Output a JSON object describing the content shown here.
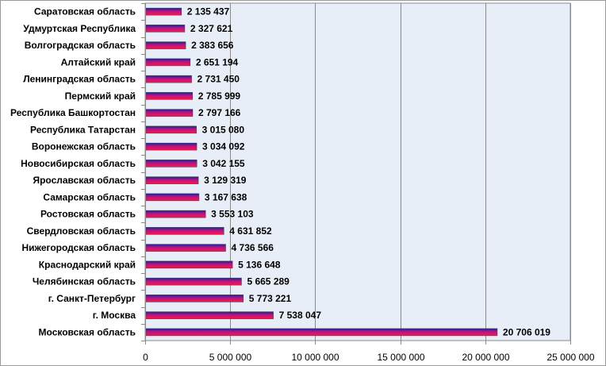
{
  "chart_data": {
    "type": "bar",
    "orientation": "horizontal",
    "categories": [
      "Саратовская область",
      "Удмуртская Республика",
      "Волгоградская область",
      "Алтайский край",
      "Ленинградская область",
      "Пермский край",
      "Республика Башкортостан",
      "Республика Татарстан",
      "Воронежская область",
      "Новосибирская область",
      "Ярославская область",
      "Самарская область",
      "Ростовская область",
      "Свердловская область",
      "Нижегородская область",
      "Краснодарский край",
      "Челябинская область",
      "г. Санкт-Петербург",
      "г. Москва",
      "Московская область"
    ],
    "values": [
      2135437,
      2327621,
      2383656,
      2651194,
      2731450,
      2785999,
      2797166,
      3015080,
      3034092,
      3042155,
      3129319,
      3167638,
      3553103,
      4631852,
      4736566,
      5136648,
      5665289,
      5773221,
      7538047,
      20706019
    ],
    "value_labels": [
      "2 135 437",
      "2 327 621",
      "2 383 656",
      "2 651 194",
      "2 731 450",
      "2 785 999",
      "2 797 166",
      "3 015 080",
      "3 034 092",
      "3 042 155",
      "3 129 319",
      "3 167 638",
      "3 553 103",
      "4 631 852",
      "4 736 566",
      "5 136 648",
      "5 665 289",
      "5 773 221",
      "7 538 047",
      "20 706 019"
    ],
    "xlim": [
      0,
      25000000
    ],
    "xticks": [
      0,
      5000000,
      10000000,
      15000000,
      20000000,
      25000000
    ],
    "xtick_labels": [
      "0",
      "5 000 000",
      "10 000 000",
      "15 000 000",
      "20 000 000",
      "25 000 000"
    ],
    "title": "",
    "xlabel": "",
    "ylabel": "",
    "grid": "vertical",
    "legend": "none",
    "colors": {
      "plot_background": "#e8eef7",
      "gridline": "#8a8a8a",
      "bar_top": "#1f1f9e",
      "bar_bottom": "#e8204a",
      "bar_stripe": "#c4107a"
    }
  }
}
